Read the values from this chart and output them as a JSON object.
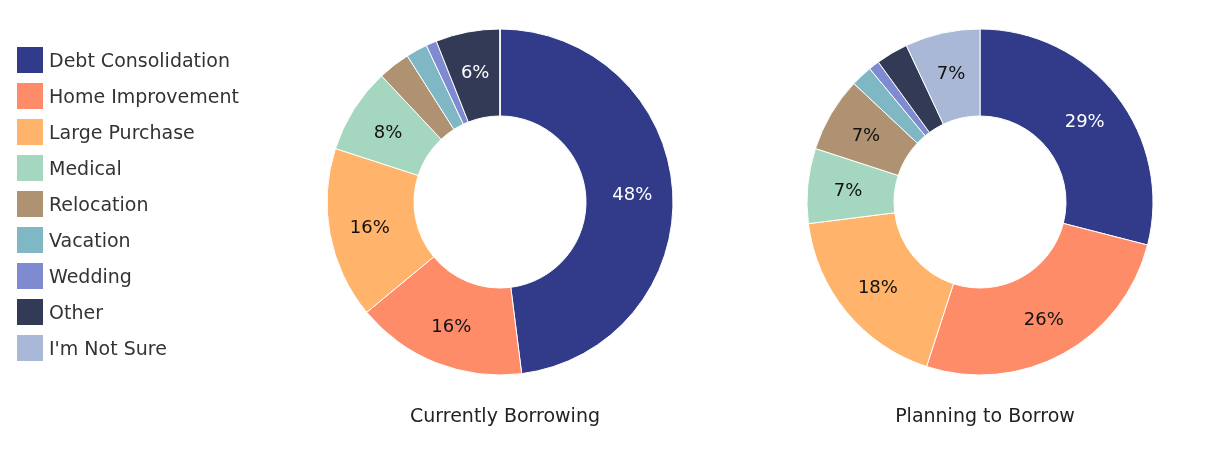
{
  "chart_data": {
    "type": "donut",
    "legend": "left",
    "categories": [
      "Debt Consolidation",
      "Home Improvement",
      "Large Purchase",
      "Medical",
      "Relocation",
      "Vacation",
      "Wedding",
      "Other",
      "I'm Not Sure"
    ],
    "colors": [
      "#323b8a",
      "#ff8c69",
      "#ffb36b",
      "#a5d6bf",
      "#ae9272",
      "#7fb8c4",
      "#7f8bd0",
      "#333a56",
      "#a9b8d6"
    ],
    "series": [
      {
        "name": "Currently Borrowing",
        "values": [
          48,
          16,
          16,
          8,
          3,
          2,
          1,
          6,
          0
        ],
        "value_labels": [
          "48%",
          "16%",
          "16%",
          "8%",
          null,
          null,
          null,
          "6%",
          null
        ]
      },
      {
        "name": "Planning to Borrow",
        "values": [
          29,
          26,
          18,
          7,
          7,
          2,
          1,
          3,
          7
        ],
        "value_labels": [
          "29%",
          "26%",
          "18%",
          "7%",
          "7%",
          null,
          null,
          null,
          "7%"
        ]
      }
    ]
  }
}
